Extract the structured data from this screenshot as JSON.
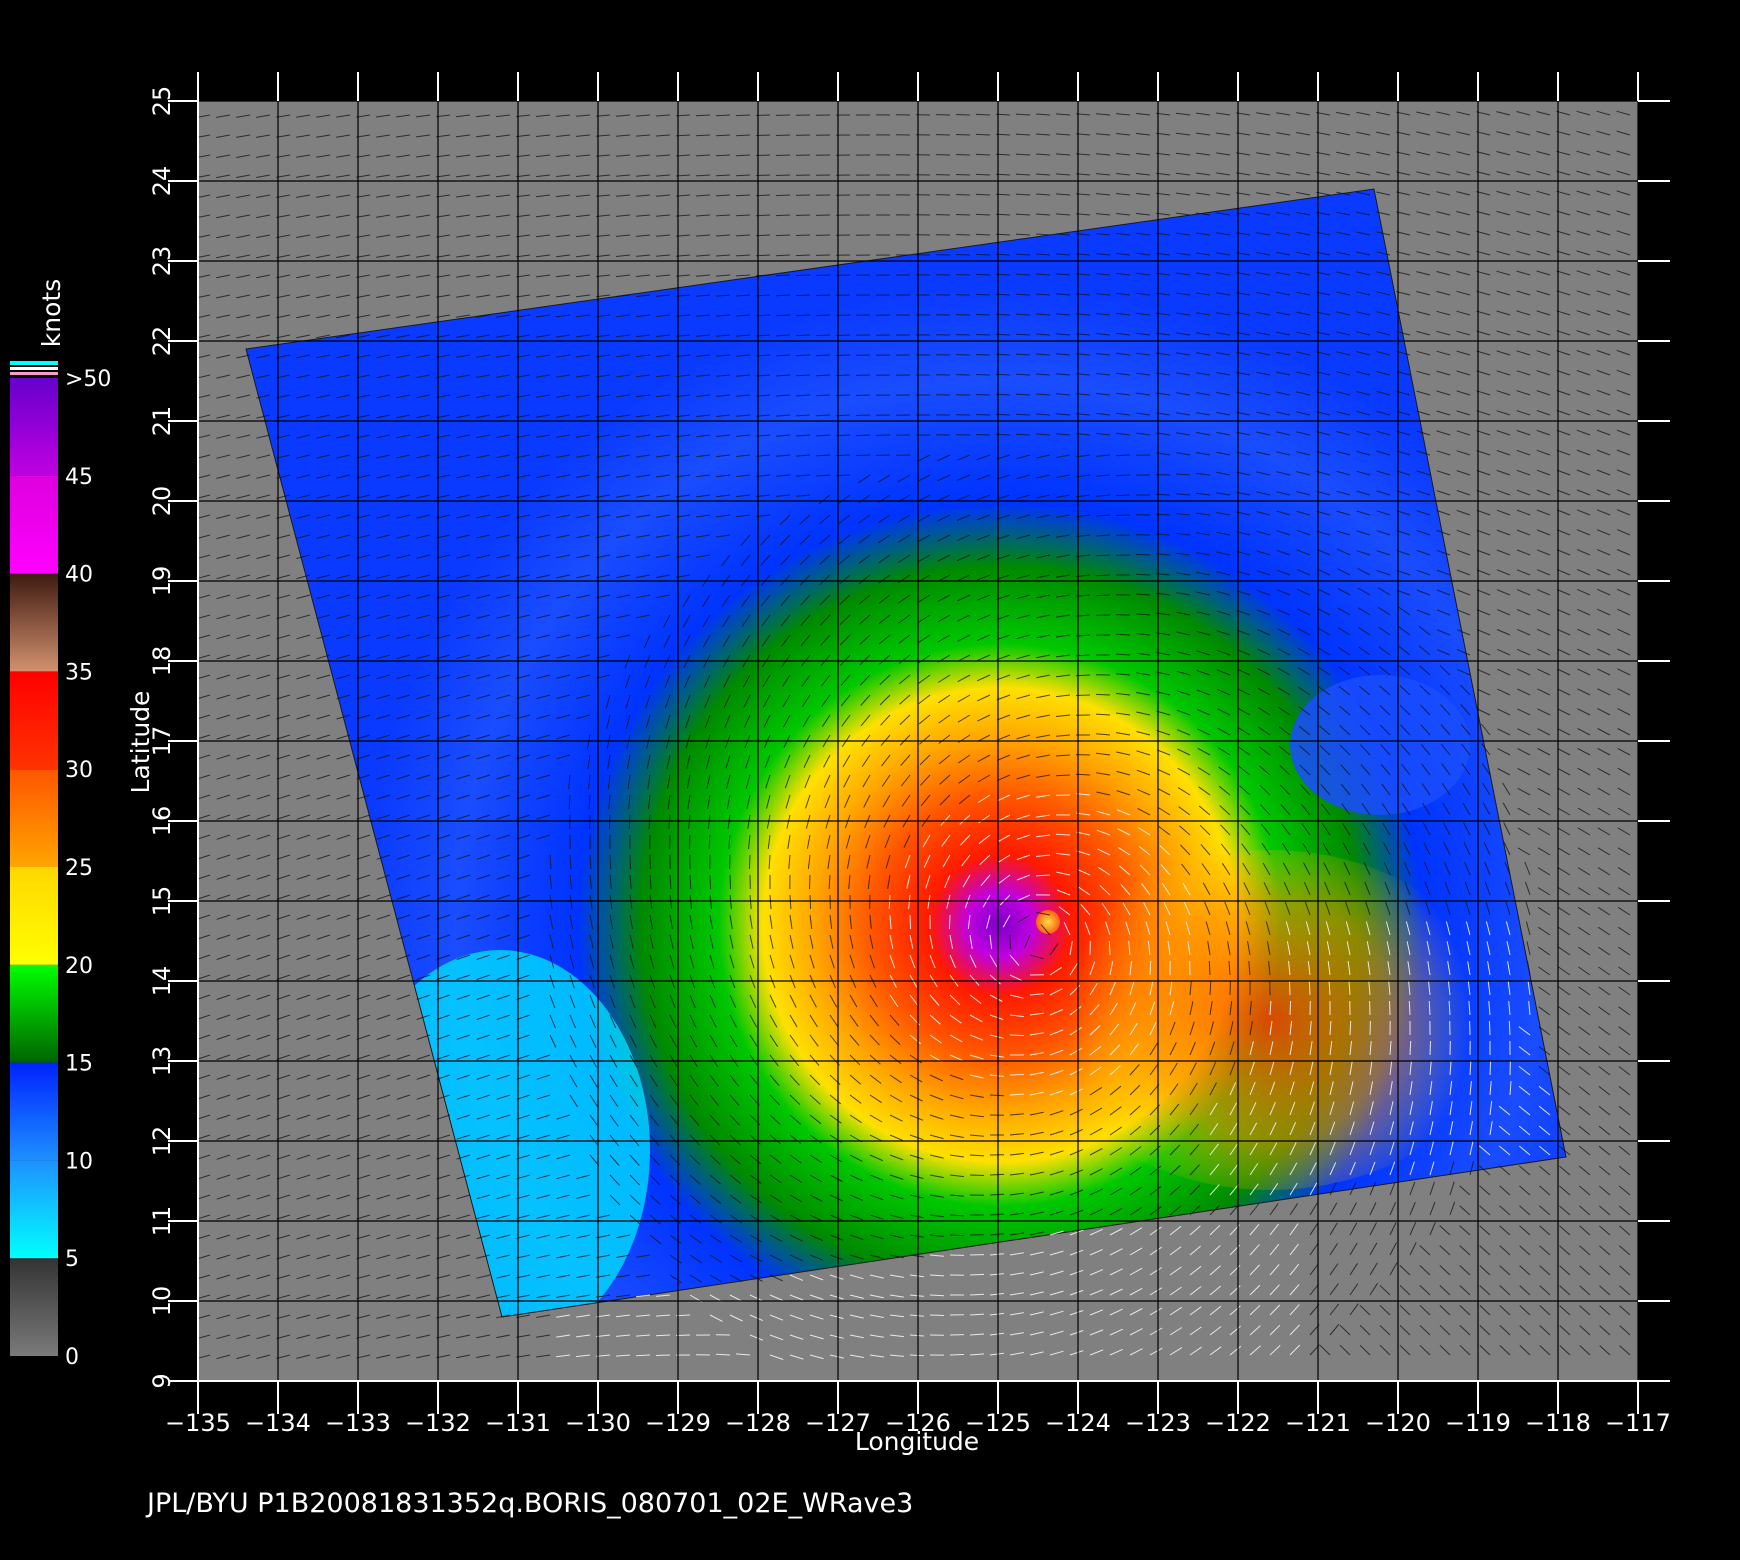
{
  "map": {
    "x_axis_title": "Longitude",
    "y_axis_title": "Latitude",
    "lon_range": [
      -135,
      -117
    ],
    "lat_range": [
      9,
      25
    ],
    "lon_ticks": [
      "−135",
      "−134",
      "−133",
      "−132",
      "−131",
      "−130",
      "−129",
      "−128",
      "−127",
      "−126",
      "−125",
      "−124",
      "−123",
      "−122",
      "−121",
      "−120",
      "−119",
      "−118",
      "−117"
    ],
    "lat_ticks": [
      "9",
      "10",
      "11",
      "12",
      "13",
      "14",
      "15",
      "16",
      "17",
      "18",
      "19",
      "20",
      "21",
      "22",
      "23",
      "24",
      "25"
    ],
    "grid": true,
    "background_color": "#808080",
    "storm_center": {
      "lon": -124.5,
      "lat": 14.5
    },
    "swath_corners": [
      [
        -134.4,
        21.9
      ],
      [
        -120.3,
        23.9
      ],
      [
        -117.9,
        11.8
      ],
      [
        -131.2,
        9.8
      ]
    ]
  },
  "colorbar": {
    "unit": "knots",
    "tick_labels": [
      ">50",
      "45",
      "40",
      "35",
      "30",
      "25",
      "20",
      "15",
      "10",
      "5",
      "0"
    ],
    "tick_values": [
      50,
      45,
      40,
      35,
      30,
      25,
      20,
      15,
      10,
      5,
      0
    ],
    "bands": [
      {
        "min": 0,
        "max": 5,
        "colors": [
          "#7a7a7a",
          "#333333"
        ]
      },
      {
        "min": 5,
        "max": 10,
        "colors": [
          "#00ffff",
          "#1e90ff"
        ]
      },
      {
        "min": 10,
        "max": 15,
        "colors": [
          "#1e90ff",
          "#0022ff"
        ]
      },
      {
        "min": 15,
        "max": 20,
        "colors": [
          "#006400",
          "#00ff00"
        ]
      },
      {
        "min": 20,
        "max": 25,
        "colors": [
          "#ffff00",
          "#ffd700"
        ]
      },
      {
        "min": 25,
        "max": 30,
        "colors": [
          "#ffa500",
          "#ff5500"
        ]
      },
      {
        "min": 30,
        "max": 35,
        "colors": [
          "#ff3300",
          "#ff0000"
        ]
      },
      {
        "min": 35,
        "max": 40,
        "colors": [
          "#d2916e",
          "#3d1a10"
        ]
      },
      {
        "min": 40,
        "max": 45,
        "colors": [
          "#ff00ff",
          "#dd00dd"
        ]
      },
      {
        "min": 45,
        "max": 50,
        "colors": [
          "#c000e0",
          "#6600cc"
        ]
      }
    ]
  },
  "footer": {
    "text": "JPL/BYU  P1B20081831352q.BORIS_080701_02E_WRave3"
  }
}
